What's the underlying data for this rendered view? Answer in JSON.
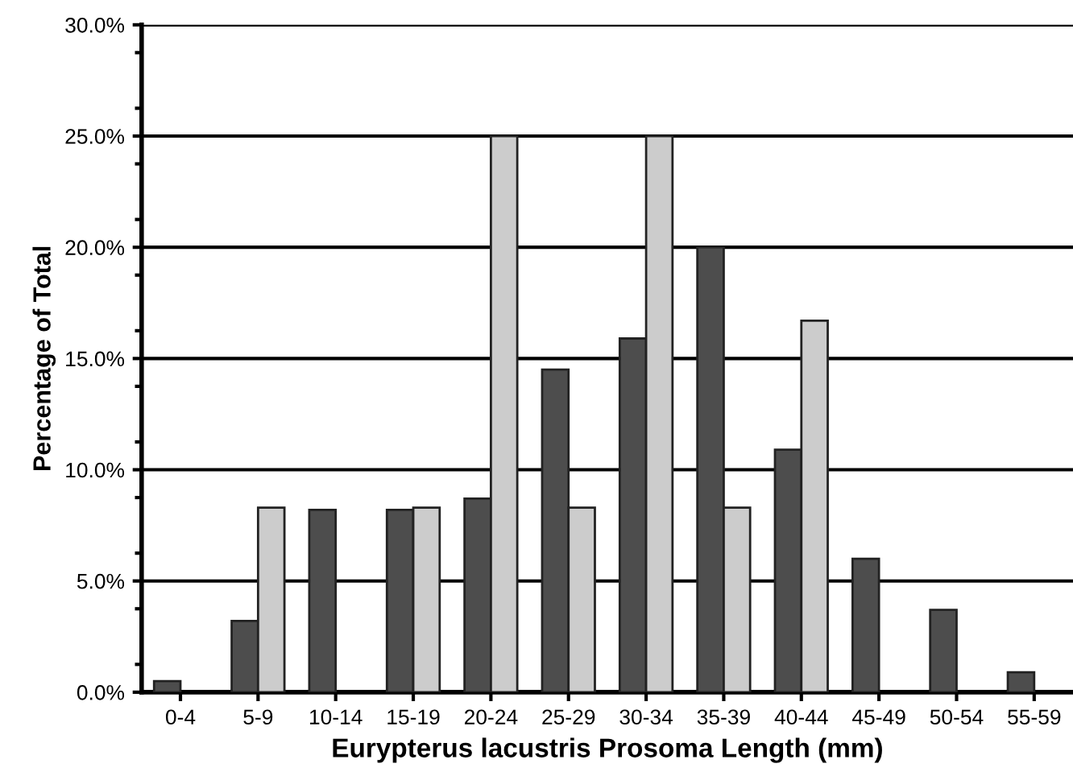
{
  "chart_data": {
    "type": "bar",
    "xlabel": "Eurypterus lacustris Prosoma Length (mm)",
    "ylabel": "Percentage of Total",
    "categories": [
      "0-4",
      "5-9",
      "10-14",
      "15-19",
      "20-24",
      "25-29",
      "30-34",
      "35-39",
      "40-44",
      "45-49",
      "50-54",
      "55-59"
    ],
    "series": [
      {
        "color": "#4d4d4d",
        "values": [
          0.5,
          3.2,
          8.2,
          8.2,
          8.7,
          14.5,
          15.9,
          20.0,
          10.9,
          6.0,
          3.7,
          0.9
        ]
      },
      {
        "color": "#cccccc",
        "values": [
          null,
          8.3,
          null,
          8.3,
          25.0,
          8.3,
          25.0,
          8.3,
          16.7,
          null,
          null,
          null
        ]
      }
    ],
    "ylim": [
      0,
      30
    ],
    "yticks": [
      {
        "value": 0,
        "label": "0.0%"
      },
      {
        "value": 5,
        "label": "5.0%"
      },
      {
        "value": 10,
        "label": "10.0%"
      },
      {
        "value": 15,
        "label": "15.0%"
      },
      {
        "value": 20,
        "label": "20.0%"
      },
      {
        "value": 25,
        "label": "25.0%"
      },
      {
        "value": 30,
        "label": "30.0%"
      }
    ],
    "grid": "y",
    "legend": false
  }
}
